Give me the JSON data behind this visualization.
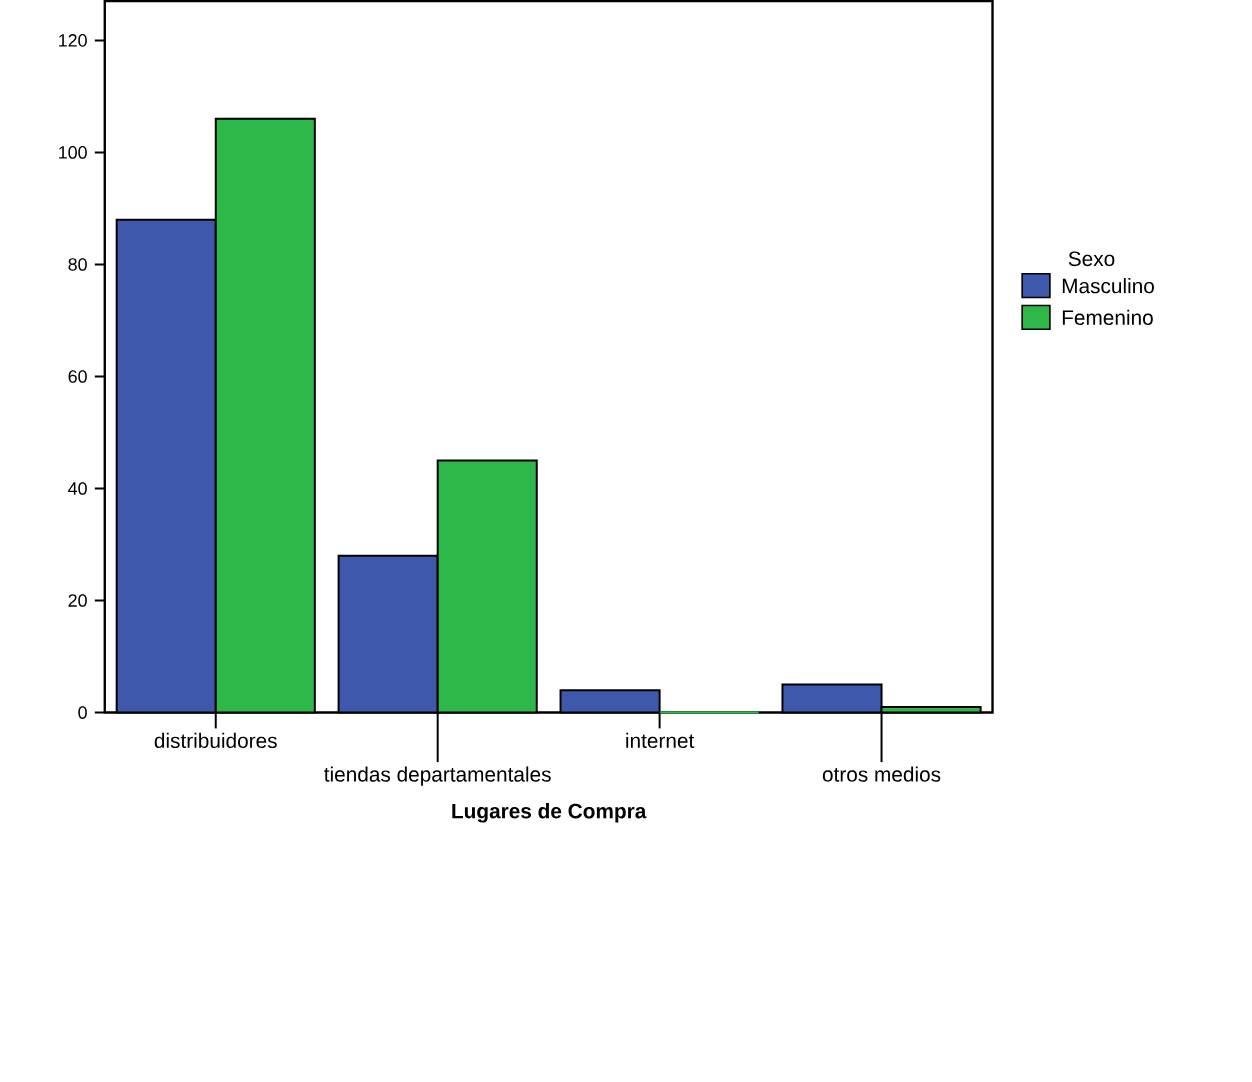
{
  "chart_data": {
    "type": "bar",
    "xlabel": "Lugares de Compra",
    "legend_title": "Sexo",
    "categories": [
      "distribuidores",
      "tiendas departamentales",
      "internet",
      "otros medios"
    ],
    "series": [
      {
        "name": "Masculino",
        "color": "#3e58ac",
        "values": [
          88,
          28,
          4,
          5
        ]
      },
      {
        "name": "Femenino",
        "color": "#2fb84a",
        "values": [
          106,
          45,
          0,
          1
        ]
      }
    ],
    "ylim": [
      0,
      127
    ],
    "yticks": [
      0,
      20,
      40,
      60,
      80,
      100,
      120
    ],
    "grid": false,
    "legend": "top right"
  }
}
